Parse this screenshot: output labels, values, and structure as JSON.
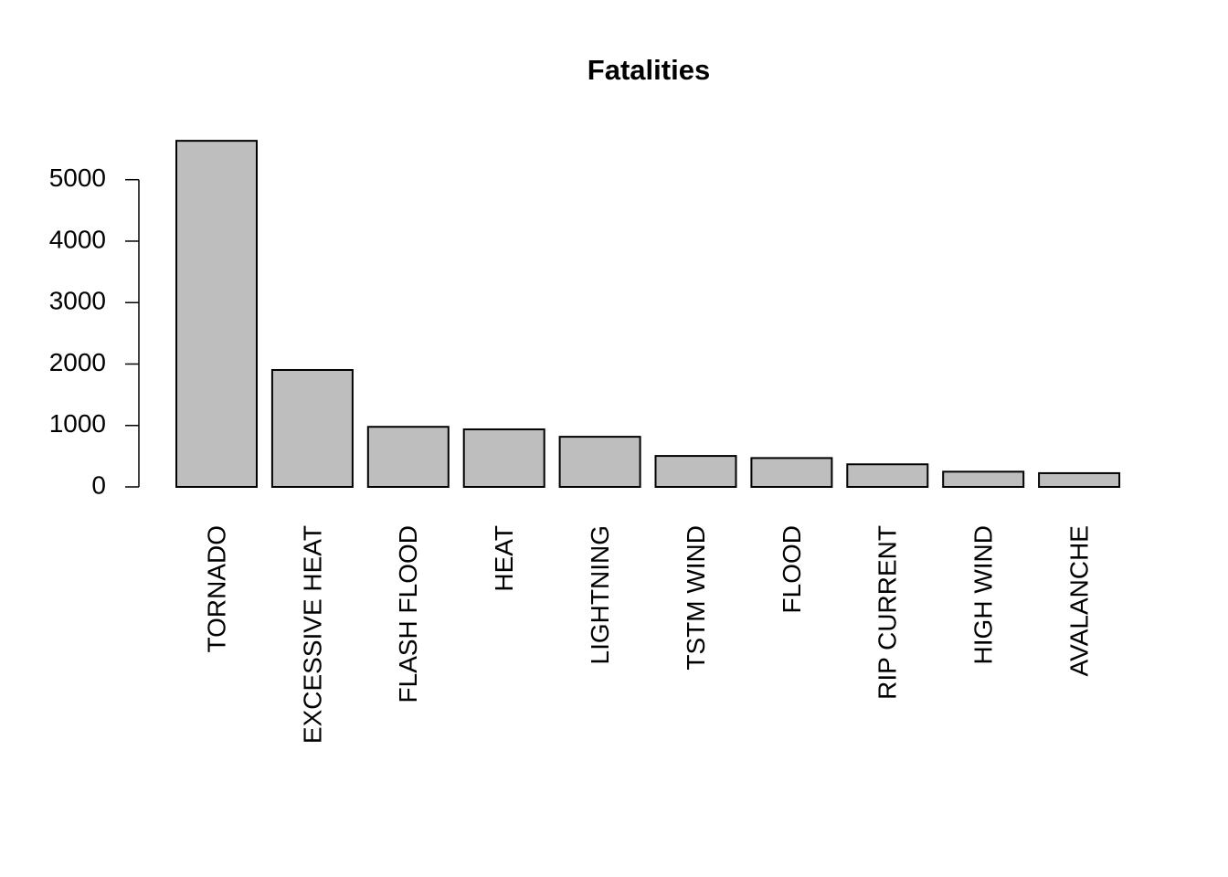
{
  "chart_data": {
    "type": "bar",
    "title": "Fatalities",
    "categories": [
      "TORNADO",
      "EXCESSIVE HEAT",
      "FLASH FLOOD",
      "HEAT",
      "LIGHTNING",
      "TSTM WIND",
      "FLOOD",
      "RIP CURRENT",
      "HIGH WIND",
      "AVALANCHE"
    ],
    "values": [
      5633,
      1903,
      978,
      937,
      816,
      504,
      470,
      368,
      248,
      224
    ],
    "color": "#bebebe",
    "ylim": [
      0,
      5858
    ],
    "yticks": [
      0,
      1000,
      2000,
      3000,
      4000,
      5000
    ],
    "grid": false
  }
}
